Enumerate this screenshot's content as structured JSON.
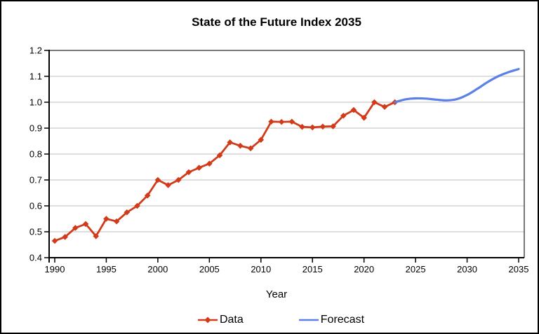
{
  "title": "State of the Future Index 2035",
  "colors": {
    "data_series": "#d23b1a",
    "forecast_series": "#5b80e8",
    "gridline": "#c9c9c9",
    "axis": "#000000",
    "frame": "#4d4d4d",
    "background": "#ffffff",
    "text": "#000000"
  },
  "chart_data": {
    "type": "line",
    "title": "State of the Future Index 2035",
    "xlabel": "Year",
    "ylabel": "",
    "xlim": [
      1990,
      2035
    ],
    "ylim": [
      0.4,
      1.2
    ],
    "x_ticks": [
      1990,
      1995,
      2000,
      2005,
      2010,
      2015,
      2020,
      2025,
      2030,
      2035
    ],
    "y_ticks": [
      0.4,
      0.5,
      0.6,
      0.7,
      0.8,
      0.9,
      1.0,
      1.1,
      1.2
    ],
    "grid": "horizontal",
    "legend_position": "bottom",
    "series": [
      {
        "name": "Data",
        "color": "#d23b1a",
        "marker": "diamond",
        "smooth": false,
        "x": [
          1990,
          1991,
          1992,
          1993,
          1994,
          1995,
          1996,
          1997,
          1998,
          1999,
          2000,
          2001,
          2002,
          2003,
          2004,
          2005,
          2006,
          2007,
          2008,
          2009,
          2010,
          2011,
          2012,
          2013,
          2014,
          2015,
          2016,
          2017,
          2018,
          2019,
          2020,
          2021,
          2022,
          2023
        ],
        "values": [
          0.465,
          0.48,
          0.515,
          0.53,
          0.483,
          0.55,
          0.54,
          0.575,
          0.6,
          0.64,
          0.7,
          0.68,
          0.7,
          0.73,
          0.747,
          0.763,
          0.795,
          0.845,
          0.832,
          0.822,
          0.855,
          0.925,
          0.924,
          0.925,
          0.905,
          0.903,
          0.906,
          0.907,
          0.948,
          0.97,
          0.94,
          1.0,
          0.982,
          1.0
        ]
      },
      {
        "name": "Forecast",
        "color": "#5b80e8",
        "marker": "none",
        "smooth": true,
        "x": [
          2023,
          2024,
          2025,
          2026,
          2027,
          2028,
          2029,
          2030,
          2031,
          2032,
          2033,
          2034,
          2035
        ],
        "values": [
          1.0,
          1.011,
          1.015,
          1.014,
          1.01,
          1.007,
          1.012,
          1.028,
          1.052,
          1.078,
          1.1,
          1.116,
          1.128
        ]
      }
    ]
  }
}
